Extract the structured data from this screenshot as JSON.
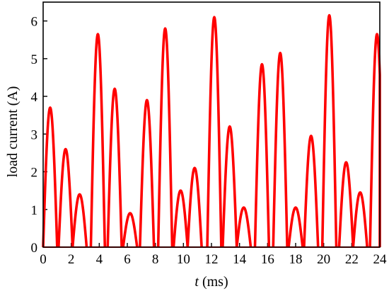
{
  "chart_data": {
    "type": "line",
    "xlabel_var": "t",
    "xlabel_unit": " (ms)",
    "ylabel": "load current (A)",
    "xlim": [
      0,
      24
    ],
    "ylim": [
      0,
      6.5
    ],
    "x_ticks": [
      0,
      2,
      4,
      6,
      8,
      10,
      12,
      14,
      16,
      18,
      20,
      22,
      24
    ],
    "y_ticks": [
      0,
      1,
      2,
      3,
      4,
      5,
      6
    ],
    "grid": false,
    "line_color": "#ff0000",
    "pulse_width_ms": 1.0,
    "series": [
      {
        "peaks": [
          {
            "t": 0.5,
            "value": 3.7
          },
          {
            "t": 1.6,
            "value": 2.6
          },
          {
            "t": 2.6,
            "value": 1.4
          },
          {
            "t": 3.9,
            "value": 5.65
          },
          {
            "t": 5.1,
            "value": 4.2
          },
          {
            "t": 6.2,
            "value": 0.9
          },
          {
            "t": 7.4,
            "value": 3.9
          },
          {
            "t": 8.7,
            "value": 5.8
          },
          {
            "t": 9.8,
            "value": 1.5
          },
          {
            "t": 10.8,
            "value": 2.1
          },
          {
            "t": 12.2,
            "value": 6.1
          },
          {
            "t": 13.3,
            "value": 3.2
          },
          {
            "t": 14.3,
            "value": 1.05
          },
          {
            "t": 15.6,
            "value": 4.85
          },
          {
            "t": 16.9,
            "value": 5.15
          },
          {
            "t": 18.0,
            "value": 1.05
          },
          {
            "t": 19.1,
            "value": 2.95
          },
          {
            "t": 20.4,
            "value": 6.15
          },
          {
            "t": 21.6,
            "value": 2.25
          },
          {
            "t": 22.6,
            "value": 1.45
          },
          {
            "t": 23.8,
            "value": 5.65
          }
        ]
      }
    ]
  }
}
